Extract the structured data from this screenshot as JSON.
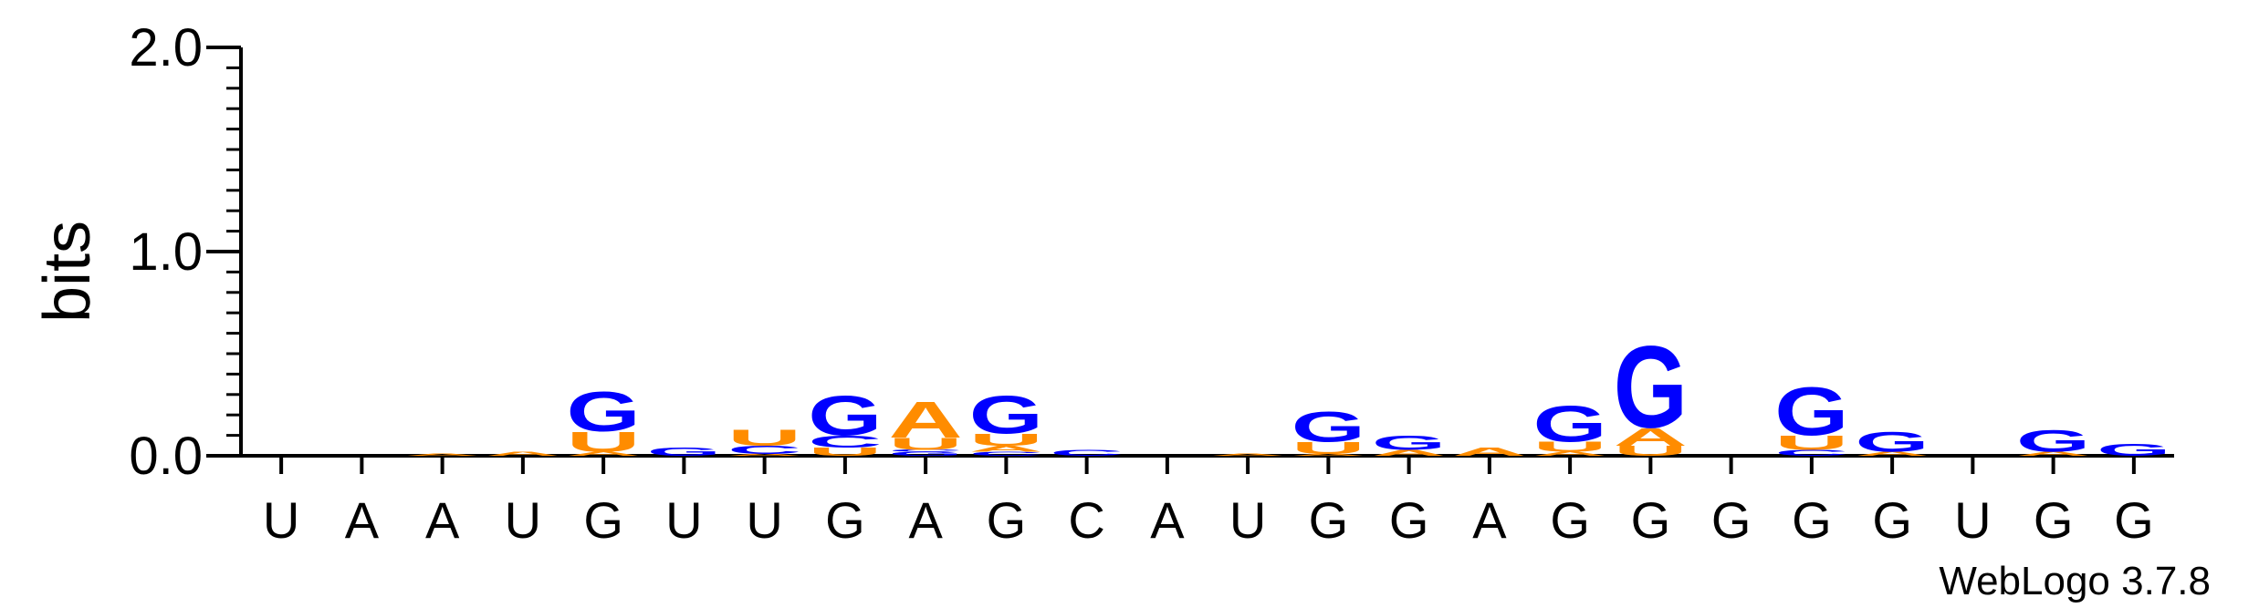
{
  "chart_data": {
    "type": "sequence-logo",
    "ylabel": "bits",
    "ylim": [
      0,
      2.0
    ],
    "yticks": [
      {
        "value": 0,
        "label": "0.0"
      },
      {
        "value": 1,
        "label": "1.0"
      },
      {
        "value": 2,
        "label": "2.0"
      }
    ],
    "positions": [
      "U",
      "A",
      "A",
      "U",
      "G",
      "U",
      "U",
      "G",
      "A",
      "G",
      "C",
      "A",
      "U",
      "G",
      "G",
      "A",
      "G",
      "G",
      "G",
      "G",
      "G",
      "U",
      "G",
      "G"
    ],
    "colors": {
      "G": "#0000ff",
      "U": "#ff8c00",
      "A": "#ff8c00",
      "C": "#0000ff"
    },
    "stacks": [
      [],
      [],
      [
        {
          "letter": "A",
          "bits": 0.01
        }
      ],
      [
        {
          "letter": "A",
          "bits": 0.02
        }
      ],
      [
        {
          "letter": "A",
          "bits": 0.02
        },
        {
          "letter": "U",
          "bits": 0.1
        },
        {
          "letter": "G",
          "bits": 0.2
        }
      ],
      [
        {
          "letter": "G",
          "bits": 0.04
        }
      ],
      [
        {
          "letter": "A",
          "bits": 0.01
        },
        {
          "letter": "C",
          "bits": 0.04
        },
        {
          "letter": "U",
          "bits": 0.08
        }
      ],
      [
        {
          "letter": "U",
          "bits": 0.04
        },
        {
          "letter": "C",
          "bits": 0.06
        },
        {
          "letter": "G",
          "bits": 0.2
        }
      ],
      [
        {
          "letter": "G",
          "bits": 0.02
        },
        {
          "letter": "C",
          "bits": 0.01
        },
        {
          "letter": "U",
          "bits": 0.06
        },
        {
          "letter": "A",
          "bits": 0.18
        }
      ],
      [
        {
          "letter": "C",
          "bits": 0.02
        },
        {
          "letter": "A",
          "bits": 0.03
        },
        {
          "letter": "U",
          "bits": 0.06
        },
        {
          "letter": "G",
          "bits": 0.19
        }
      ],
      [
        {
          "letter": "C",
          "bits": 0.03
        }
      ],
      [],
      [
        {
          "letter": "A",
          "bits": 0.01
        }
      ],
      [
        {
          "letter": "A",
          "bits": 0.01
        },
        {
          "letter": "U",
          "bits": 0.06
        },
        {
          "letter": "G",
          "bits": 0.15
        }
      ],
      [
        {
          "letter": "A",
          "bits": 0.03
        },
        {
          "letter": "G",
          "bits": 0.07
        }
      ],
      [
        {
          "letter": "A",
          "bits": 0.04
        }
      ],
      [
        {
          "letter": "A",
          "bits": 0.02
        },
        {
          "letter": "U",
          "bits": 0.05
        },
        {
          "letter": "G",
          "bits": 0.18
        }
      ],
      [
        {
          "letter": "U",
          "bits": 0.05
        },
        {
          "letter": "A",
          "bits": 0.09
        },
        {
          "letter": "G",
          "bits": 0.41
        }
      ],
      [],
      [
        {
          "letter": "C",
          "bits": 0.03
        },
        {
          "letter": "U",
          "bits": 0.07
        },
        {
          "letter": "G",
          "bits": 0.24
        }
      ],
      [
        {
          "letter": "A",
          "bits": 0.02
        },
        {
          "letter": "G",
          "bits": 0.1
        }
      ],
      [],
      [
        {
          "letter": "A",
          "bits": 0.02
        },
        {
          "letter": "G",
          "bits": 0.11
        }
      ],
      [
        {
          "letter": "G",
          "bits": 0.06
        }
      ]
    ]
  },
  "footer": {
    "version": "WebLogo 3.7.8"
  }
}
